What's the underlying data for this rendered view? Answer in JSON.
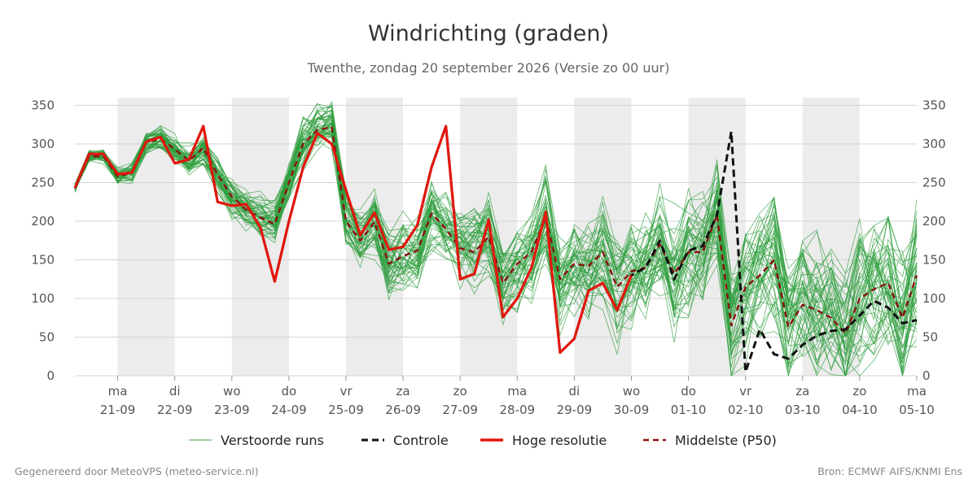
{
  "chart_data": {
    "type": "line",
    "title": "Windrichting (graden)",
    "subtitle": "Twenthe, zondag 20 september 2026 (Versie zo 00 uur)",
    "ylim": [
      0,
      360
    ],
    "yticks": [
      0,
      50,
      100,
      150,
      200,
      250,
      300,
      350
    ],
    "x_range": [
      "2026-09-20T06:00",
      "2026-10-05T00:00"
    ],
    "x_ticks": [
      {
        "day": "ma",
        "date": "21-09"
      },
      {
        "day": "di",
        "date": "22-09"
      },
      {
        "day": "wo",
        "date": "23-09"
      },
      {
        "day": "do",
        "date": "24-09"
      },
      {
        "day": "vr",
        "date": "25-09"
      },
      {
        "day": "za",
        "date": "26-09"
      },
      {
        "day": "zo",
        "date": "27-09"
      },
      {
        "day": "ma",
        "date": "28-09"
      },
      {
        "day": "di",
        "date": "29-09"
      },
      {
        "day": "wo",
        "date": "30-09"
      },
      {
        "day": "do",
        "date": "01-10"
      },
      {
        "day": "vr",
        "date": "02-10"
      },
      {
        "day": "za",
        "date": "03-10"
      },
      {
        "day": "zo",
        "date": "04-10"
      },
      {
        "day": "ma",
        "date": "05-10"
      }
    ],
    "shaded_days": [
      "21-09",
      "23-09",
      "25-09",
      "27-09",
      "29-09",
      "01-10",
      "03-10"
    ],
    "grid": true,
    "legend_position": "bottom",
    "series": [
      {
        "name": "Hoge resolutie",
        "color": "#e3170e",
        "style": "solid",
        "x": [
          "2026-09-20T06:00",
          "2026-09-20T12:00",
          "2026-09-20T18:00",
          "2026-09-21T00:00",
          "2026-09-21T06:00",
          "2026-09-21T12:00",
          "2026-09-21T18:00",
          "2026-09-22T00:00",
          "2026-09-22T06:00",
          "2026-09-22T12:00",
          "2026-09-22T18:00",
          "2026-09-23T00:00",
          "2026-09-23T06:00",
          "2026-09-23T12:00",
          "2026-09-23T18:00",
          "2026-09-24T00:00",
          "2026-09-24T06:00",
          "2026-09-24T12:00",
          "2026-09-24T18:00",
          "2026-09-25T00:00",
          "2026-09-25T06:00",
          "2026-09-25T12:00",
          "2026-09-25T18:00",
          "2026-09-26T00:00",
          "2026-09-26T06:00",
          "2026-09-26T12:00",
          "2026-09-26T18:00",
          "2026-09-27T00:00",
          "2026-09-27T06:00",
          "2026-09-27T12:00",
          "2026-09-27T18:00",
          "2026-09-28T00:00",
          "2026-09-28T06:00",
          "2026-09-28T12:00",
          "2026-09-28T18:00",
          "2026-09-29T00:00",
          "2026-09-29T06:00",
          "2026-09-29T12:00",
          "2026-09-29T18:00",
          "2026-09-30T00:00"
        ],
        "values": [
          243,
          287,
          287,
          261,
          263,
          303,
          309,
          275,
          280,
          323,
          225,
          220,
          222,
          192,
          122,
          200,
          270,
          314,
          300,
          240,
          182,
          211,
          163,
          167,
          195,
          270,
          323,
          125,
          132,
          202,
          76,
          100,
          140,
          212,
          30,
          48,
          110,
          120,
          85,
          130
        ]
      },
      {
        "name": "Controle",
        "color": "#111111",
        "style": "dash",
        "x": [
          "2026-09-20T06:00",
          "2026-09-20T12:00",
          "2026-09-20T18:00",
          "2026-09-21T00:00",
          "2026-09-21T06:00",
          "2026-09-21T12:00",
          "2026-09-21T18:00",
          "2026-09-22T00:00",
          "2026-09-22T06:00",
          "2026-09-22T12:00",
          "2026-09-22T18:00",
          "2026-09-23T00:00",
          "2026-09-23T06:00",
          "2026-09-23T12:00",
          "2026-09-23T18:00",
          "2026-09-24T00:00",
          "2026-09-24T06:00",
          "2026-09-24T12:00",
          "2026-09-24T18:00",
          "2026-09-25T00:00",
          "2026-09-25T06:00",
          "2026-09-25T12:00",
          "2026-09-25T18:00",
          "2026-09-26T00:00",
          "2026-09-26T06:00",
          "2026-09-26T12:00",
          "2026-09-26T18:00",
          "2026-09-27T00:00",
          "2026-09-27T06:00",
          "2026-09-27T12:00",
          "2026-09-27T18:00",
          "2026-09-28T00:00",
          "2026-09-28T06:00",
          "2026-09-28T12:00",
          "2026-09-28T18:00",
          "2026-09-29T00:00",
          "2026-09-29T06:00",
          "2026-09-29T12:00",
          "2026-09-29T18:00",
          "2026-09-30T00:00",
          "2026-09-30T06:00",
          "2026-09-30T12:00",
          "2026-09-30T18:00",
          "2026-10-01T00:00",
          "2026-10-01T06:00",
          "2026-10-01T12:00",
          "2026-10-01T18:00",
          "2026-10-02T00:00",
          "2026-10-02T06:00",
          "2026-10-02T12:00",
          "2026-10-02T18:00",
          "2026-10-03T00:00",
          "2026-10-03T06:00",
          "2026-10-03T12:00",
          "2026-10-03T18:00",
          "2026-10-04T00:00",
          "2026-10-04T06:00",
          "2026-10-04T12:00",
          "2026-10-04T18:00",
          "2026-10-05T00:00"
        ],
        "values": [
          243,
          287,
          287,
          261,
          263,
          303,
          309,
          275,
          280,
          323,
          225,
          220,
          222,
          192,
          122,
          200,
          270,
          314,
          300,
          240,
          182,
          211,
          163,
          167,
          195,
          270,
          323,
          125,
          132,
          202,
          76,
          100,
          140,
          212,
          30,
          48,
          110,
          120,
          85,
          130,
          140,
          175,
          125,
          162,
          168,
          208,
          316,
          5,
          60,
          28,
          22,
          40,
          52,
          58,
          60,
          78,
          97,
          88,
          68,
          72
        ]
      },
      {
        "name": "Middelste (P50)",
        "color": "#8b1010",
        "style": "dash",
        "x": [
          "2026-09-20T06:00",
          "2026-09-20T12:00",
          "2026-09-20T18:00",
          "2026-09-21T00:00",
          "2026-09-21T06:00",
          "2026-09-21T12:00",
          "2026-09-21T18:00",
          "2026-09-22T00:00",
          "2026-09-22T06:00",
          "2026-09-22T12:00",
          "2026-09-22T18:00",
          "2026-09-23T00:00",
          "2026-09-23T06:00",
          "2026-09-23T12:00",
          "2026-09-23T18:00",
          "2026-09-24T00:00",
          "2026-09-24T06:00",
          "2026-09-24T12:00",
          "2026-09-24T18:00",
          "2026-09-25T00:00",
          "2026-09-25T06:00",
          "2026-09-25T12:00",
          "2026-09-25T18:00",
          "2026-09-26T00:00",
          "2026-09-26T06:00",
          "2026-09-26T12:00",
          "2026-09-26T18:00",
          "2026-09-27T00:00",
          "2026-09-27T06:00",
          "2026-09-27T12:00",
          "2026-09-27T18:00",
          "2026-09-28T00:00",
          "2026-09-28T06:00",
          "2026-09-28T12:00",
          "2026-09-28T18:00",
          "2026-09-29T00:00",
          "2026-09-29T06:00",
          "2026-09-29T12:00",
          "2026-09-29T18:00",
          "2026-09-30T00:00",
          "2026-09-30T06:00",
          "2026-09-30T12:00",
          "2026-09-30T18:00",
          "2026-10-01T00:00",
          "2026-10-01T06:00",
          "2026-10-01T12:00",
          "2026-10-01T18:00",
          "2026-10-02T00:00",
          "2026-10-02T06:00",
          "2026-10-02T12:00",
          "2026-10-02T18:00",
          "2026-10-03T00:00",
          "2026-10-03T06:00",
          "2026-10-03T12:00",
          "2026-10-03T18:00",
          "2026-10-04T00:00",
          "2026-10-04T06:00",
          "2026-10-04T12:00",
          "2026-10-04T18:00",
          "2026-10-05T00:00"
        ],
        "values": [
          243,
          284,
          284,
          258,
          263,
          302,
          307,
          293,
          278,
          295,
          260,
          232,
          215,
          205,
          196,
          250,
          300,
          318,
          322,
          200,
          175,
          199,
          145,
          155,
          162,
          210,
          190,
          165,
          160,
          180,
          120,
          145,
          160,
          205,
          125,
          145,
          142,
          160,
          115,
          135,
          140,
          170,
          132,
          160,
          160,
          208,
          65,
          115,
          130,
          150,
          63,
          92,
          85,
          75,
          55,
          100,
          112,
          120,
          75,
          130
        ]
      }
    ],
    "ensemble": {
      "name": "Verstoorde runs",
      "color": "#2e9e3c",
      "members": 50,
      "x_start": "2026-09-20T06:00",
      "x_step_hours": 6,
      "spread_note": "",
      "values": []
    }
  },
  "legend": {
    "items": [
      {
        "label": "Verstoorde runs",
        "color": "#3aa64c",
        "style": "thin"
      },
      {
        "label": "Controle",
        "color": "#111111",
        "style": "dash"
      },
      {
        "label": "Hoge resolutie",
        "color": "#e3170e",
        "style": "solid"
      },
      {
        "label": "Middelste (P50)",
        "color": "#8b1010",
        "style": "dash"
      }
    ]
  },
  "footer": {
    "left": "Gegenereerd door MeteoVPS (meteo-service.nl)",
    "right": "Bron: ECMWF AIFS/KNMI Ens"
  }
}
